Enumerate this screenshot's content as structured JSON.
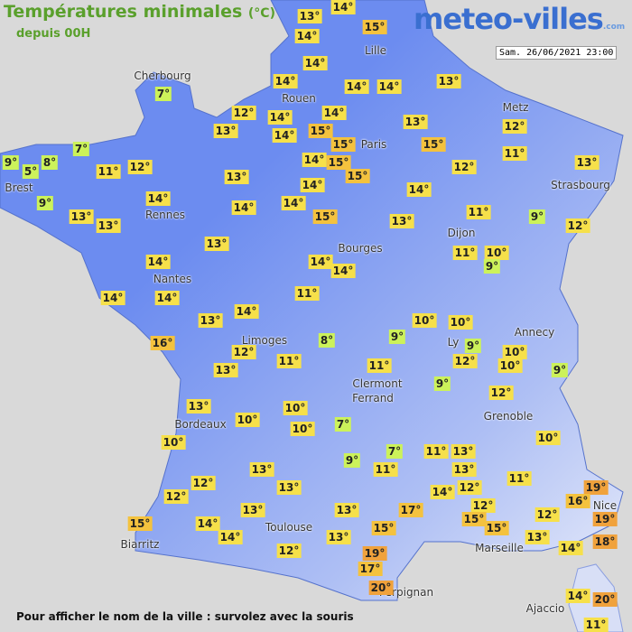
{
  "header": {
    "title": "Températures minimales",
    "unit": "(°C)",
    "subtitle": "depuis 00H",
    "logo": "meteo-villes",
    "logo_suffix": ".com",
    "timestamp": "Sam. 26/06/2021 23:00"
  },
  "cities": [
    "Cherbourg",
    "Lille",
    "Rouen",
    "Paris",
    "Metz",
    "Strasbourg",
    "Brest",
    "Rennes",
    "Dijon",
    "Bourges",
    "Nantes",
    "Annecy",
    "Limoges",
    "Ly",
    "Clermont",
    "Ferrand",
    "Grenoble",
    "Bordeaux",
    "Nice",
    "Toulouse",
    "Biarritz",
    "Marseille",
    "Perpignan",
    "Ajaccio"
  ],
  "temperatures": [
    "14°",
    "13°",
    "15°",
    "14°",
    "14°",
    "13°",
    "14°",
    "14°",
    "14°",
    "7°",
    "12°",
    "14°",
    "14°",
    "13°",
    "12°",
    "13°",
    "14°",
    "15°",
    "15°",
    "15°",
    "7°",
    "11°",
    "9°",
    "8°",
    "5°",
    "11°",
    "12°",
    "14°",
    "15°",
    "12°",
    "13°",
    "13°",
    "14°",
    "15°",
    "14°",
    "14°",
    "14°",
    "14°",
    "9°",
    "13°",
    "13°",
    "15°",
    "13°",
    "11°",
    "9°",
    "12°",
    "13°",
    "11°",
    "10°",
    "9°",
    "14°",
    "14°",
    "14°",
    "14°",
    "14°",
    "11°",
    "13°",
    "14°",
    "10°",
    "10°",
    "16°",
    "8°",
    "9°",
    "9°",
    "10°",
    "12°",
    "12°",
    "10°",
    "9°",
    "13°",
    "11°",
    "11°",
    "9°",
    "12°",
    "13°",
    "10°",
    "7°",
    "10°",
    "10°",
    "10°",
    "10°",
    "7°",
    "11°",
    "13°",
    "9°",
    "11°",
    "13°",
    "13°",
    "11°",
    "12°",
    "13°",
    "12°",
    "14°",
    "19°",
    "16°",
    "12°",
    "17°",
    "13°",
    "13°",
    "12°",
    "12°",
    "19°",
    "15°",
    "15°",
    "15°",
    "14°",
    "15°",
    "14°",
    "13°",
    "13°",
    "18°",
    "14°",
    "12°",
    "19°",
    "17°",
    "20°",
    "14°",
    "20°",
    "11°"
  ],
  "footer": "Pour afficher le nom de la ville : survolez avec la souris"
}
